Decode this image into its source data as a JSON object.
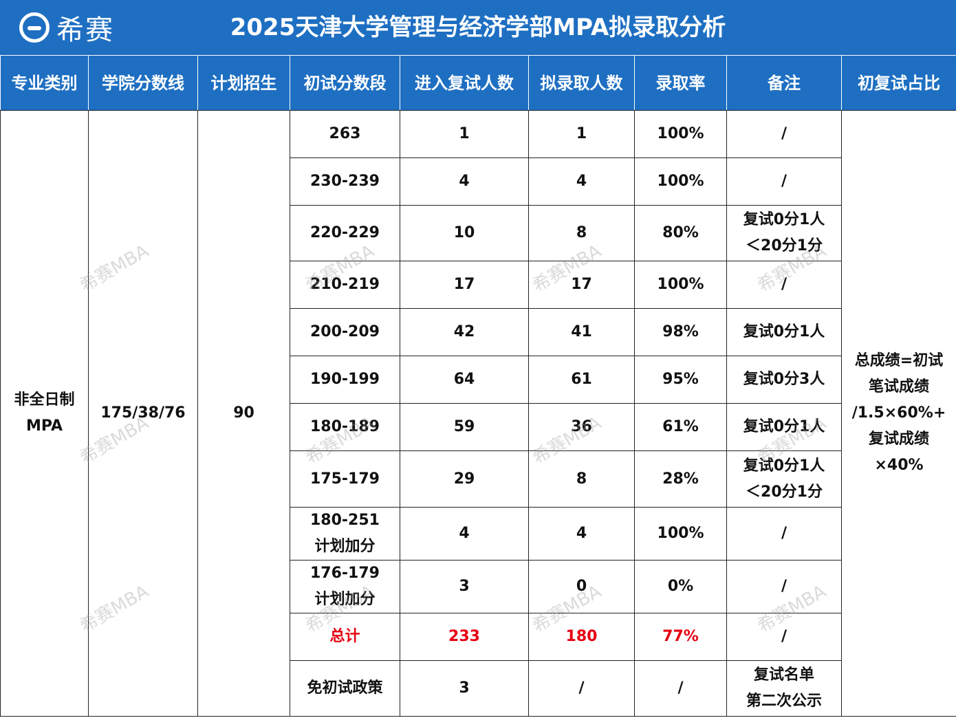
{
  "header": {
    "logo_text": "希赛",
    "title": "2025天津大学管理与经济学部MPA拟录取分析"
  },
  "columns": [
    "专业类别",
    "学院分数线",
    "计划招生",
    "初试分数段",
    "进入复试人数",
    "拟录取人数",
    "录取率",
    "备注",
    "初复试占比"
  ],
  "program": {
    "category": "非全日制\nMPA",
    "score_line": "175/38/76",
    "plan": "90",
    "ratio_note": "总成绩=初试\n笔试成绩\n/1.5×60%+\n复试成绩\n×40%"
  },
  "rows": [
    {
      "range": "263",
      "interview": "1",
      "admitted": "1",
      "rate": "100%",
      "note": "/"
    },
    {
      "range": "230-239",
      "interview": "4",
      "admitted": "4",
      "rate": "100%",
      "note": "/"
    },
    {
      "range": "220-229",
      "interview": "10",
      "admitted": "8",
      "rate": "80%",
      "note": "复试0分1人\n＜20分1分"
    },
    {
      "range": "210-219",
      "interview": "17",
      "admitted": "17",
      "rate": "100%",
      "note": "/"
    },
    {
      "range": "200-209",
      "interview": "42",
      "admitted": "41",
      "rate": "98%",
      "note": "复试0分1人"
    },
    {
      "range": "190-199",
      "interview": "64",
      "admitted": "61",
      "rate": "95%",
      "note": "复试0分3人"
    },
    {
      "range": "180-189",
      "interview": "59",
      "admitted": "36",
      "rate": "61%",
      "note": "复试0分1人"
    },
    {
      "range": "175-179",
      "interview": "29",
      "admitted": "8",
      "rate": "28%",
      "note": "复试0分1人\n＜20分1分"
    },
    {
      "range": "180-251\n计划加分",
      "interview": "4",
      "admitted": "4",
      "rate": "100%",
      "note": "/"
    },
    {
      "range": "176-179\n计划加分",
      "interview": "3",
      "admitted": "0",
      "rate": "0%",
      "note": "/"
    },
    {
      "range": "总计",
      "interview": "233",
      "admitted": "180",
      "rate": "77%",
      "note": "/",
      "highlight": "#e60012"
    },
    {
      "range": "免初试政策",
      "interview": "3",
      "admitted": "/",
      "rate": "/",
      "note": "复试名单\n第二次公示"
    }
  ],
  "watermark_text": "希赛MBA"
}
